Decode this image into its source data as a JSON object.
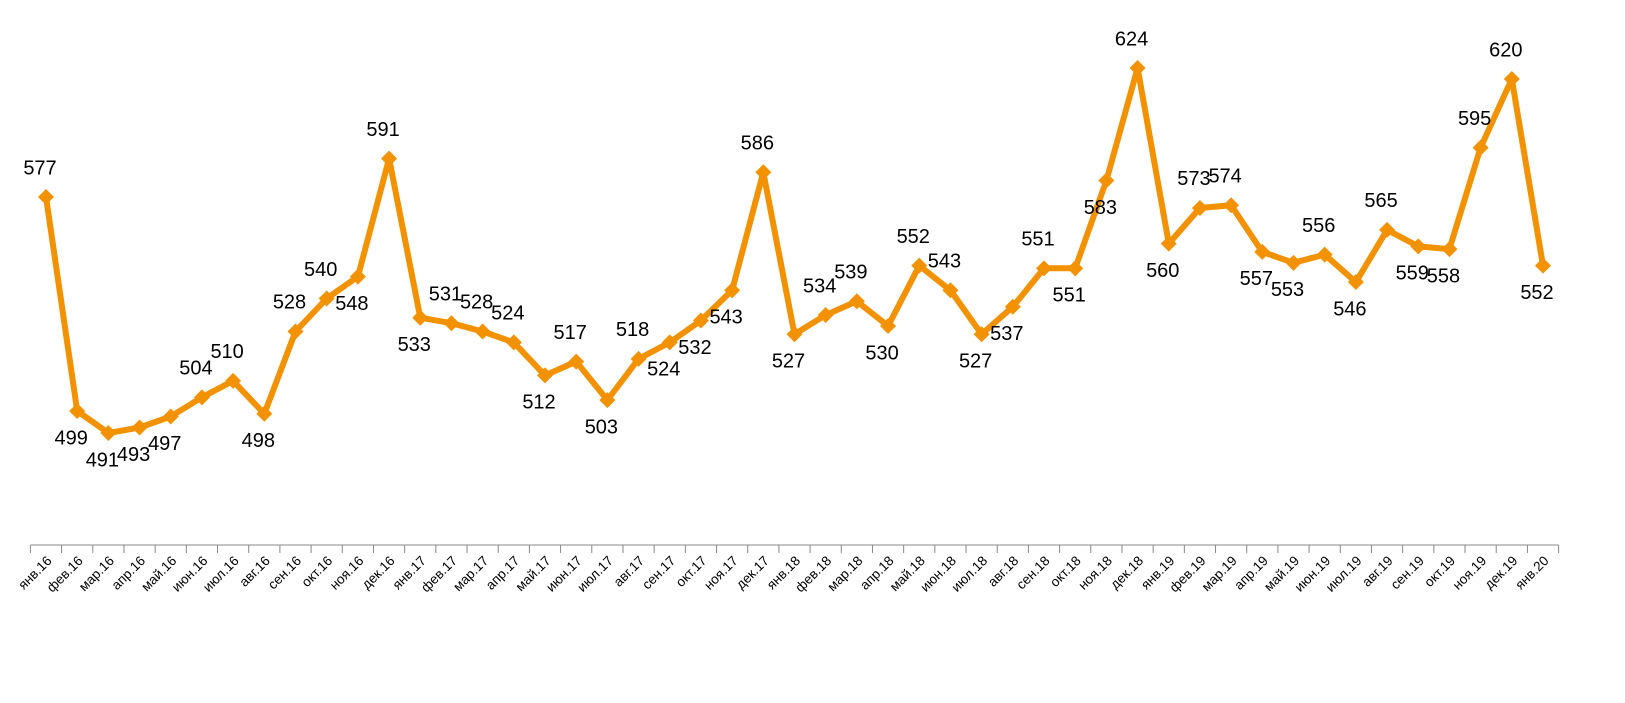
{
  "chart_data": {
    "type": "line",
    "categories": [
      "янв.16",
      "фев.16",
      "мар.16",
      "апр.16",
      "май.16",
      "июн.16",
      "июл.16",
      "авг.16",
      "сен.16",
      "окт.16",
      "ноя.16",
      "дек.16",
      "янв.17",
      "фев.17",
      "мар.17",
      "апр.17",
      "май.17",
      "июн.17",
      "июл.17",
      "авг.17",
      "сен.17",
      "окт.17",
      "ноя.17",
      "дек.17",
      "янв.18",
      "фев.18",
      "мар.18",
      "апр.18",
      "май.18",
      "июн.18",
      "июл.18",
      "авг.18",
      "сен.18",
      "окт.18",
      "ноя.18",
      "дек.18",
      "янв.19",
      "фев.19",
      "мар.19",
      "апр.19",
      "май.19",
      "июн.19",
      "июл.19",
      "авг.19",
      "сен.19",
      "окт.19",
      "ноя.19",
      "дек.19",
      "янв.20"
    ],
    "values": [
      577,
      499,
      491,
      493,
      497,
      504,
      510,
      498,
      528,
      540,
      548,
      591,
      533,
      531,
      528,
      524,
      512,
      517,
      503,
      518,
      524,
      532,
      543,
      586,
      527,
      534,
      539,
      530,
      552,
      543,
      527,
      537,
      551,
      551,
      583,
      624,
      560,
      573,
      574,
      557,
      553,
      556,
      546,
      565,
      559,
      558,
      595,
      620,
      552
    ],
    "color": "#f39200"
  }
}
